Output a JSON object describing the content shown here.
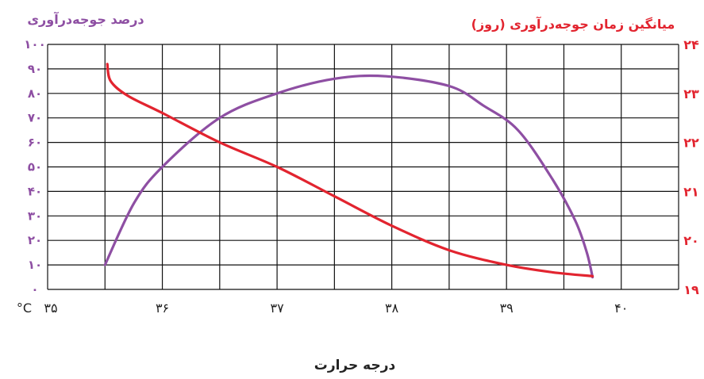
{
  "chart_data": {
    "type": "line",
    "title_left_axis": "درصد جوجه‌درآوری",
    "title_right_axis": "میانگین زمان جوجه‌درآوری (روز)",
    "xlabel": "درجه حرارت",
    "x_unit": "°C",
    "x_ticks": [
      "۳۵",
      "۳۶",
      "۳۷",
      "۳۸",
      "۳۹",
      "۴۰"
    ],
    "xlim": [
      35,
      40.5
    ],
    "y_left_ticks": [
      "۰",
      "۱۰",
      "۲۰",
      "۳۰",
      "۴۰",
      "۵۰",
      "۶۰",
      "۷۰",
      "۸۰",
      "۹۰",
      "۱۰۰"
    ],
    "y_left_lim": [
      0,
      100
    ],
    "y_right_ticks": [
      "۱۹",
      "۲۰",
      "۲۱",
      "۲۲",
      "۲۳",
      "۲۴"
    ],
    "y_right_lim": [
      19,
      24
    ],
    "grid": true,
    "series": [
      {
        "axis": "left",
        "color": "#8e4fa3",
        "points": [
          [
            35.5,
            10
          ],
          [
            35.75,
            35
          ],
          [
            36.0,
            50
          ],
          [
            36.5,
            70
          ],
          [
            37.0,
            80
          ],
          [
            37.5,
            86
          ],
          [
            37.95,
            87
          ],
          [
            38.5,
            83
          ],
          [
            38.8,
            75
          ],
          [
            39.1,
            65
          ],
          [
            39.4,
            45
          ],
          [
            39.6,
            28
          ],
          [
            39.7,
            15
          ],
          [
            39.75,
            5
          ]
        ]
      },
      {
        "axis": "right",
        "color": "#e2242f",
        "points": [
          [
            35.52,
            23.6
          ],
          [
            35.55,
            23.25
          ],
          [
            35.7,
            22.95
          ],
          [
            36.0,
            22.6
          ],
          [
            36.5,
            22.0
          ],
          [
            37.0,
            21.5
          ],
          [
            37.5,
            20.9
          ],
          [
            38.0,
            20.3
          ],
          [
            38.5,
            19.8
          ],
          [
            39.0,
            19.5
          ],
          [
            39.4,
            19.35
          ],
          [
            39.75,
            19.27
          ]
        ]
      }
    ]
  }
}
